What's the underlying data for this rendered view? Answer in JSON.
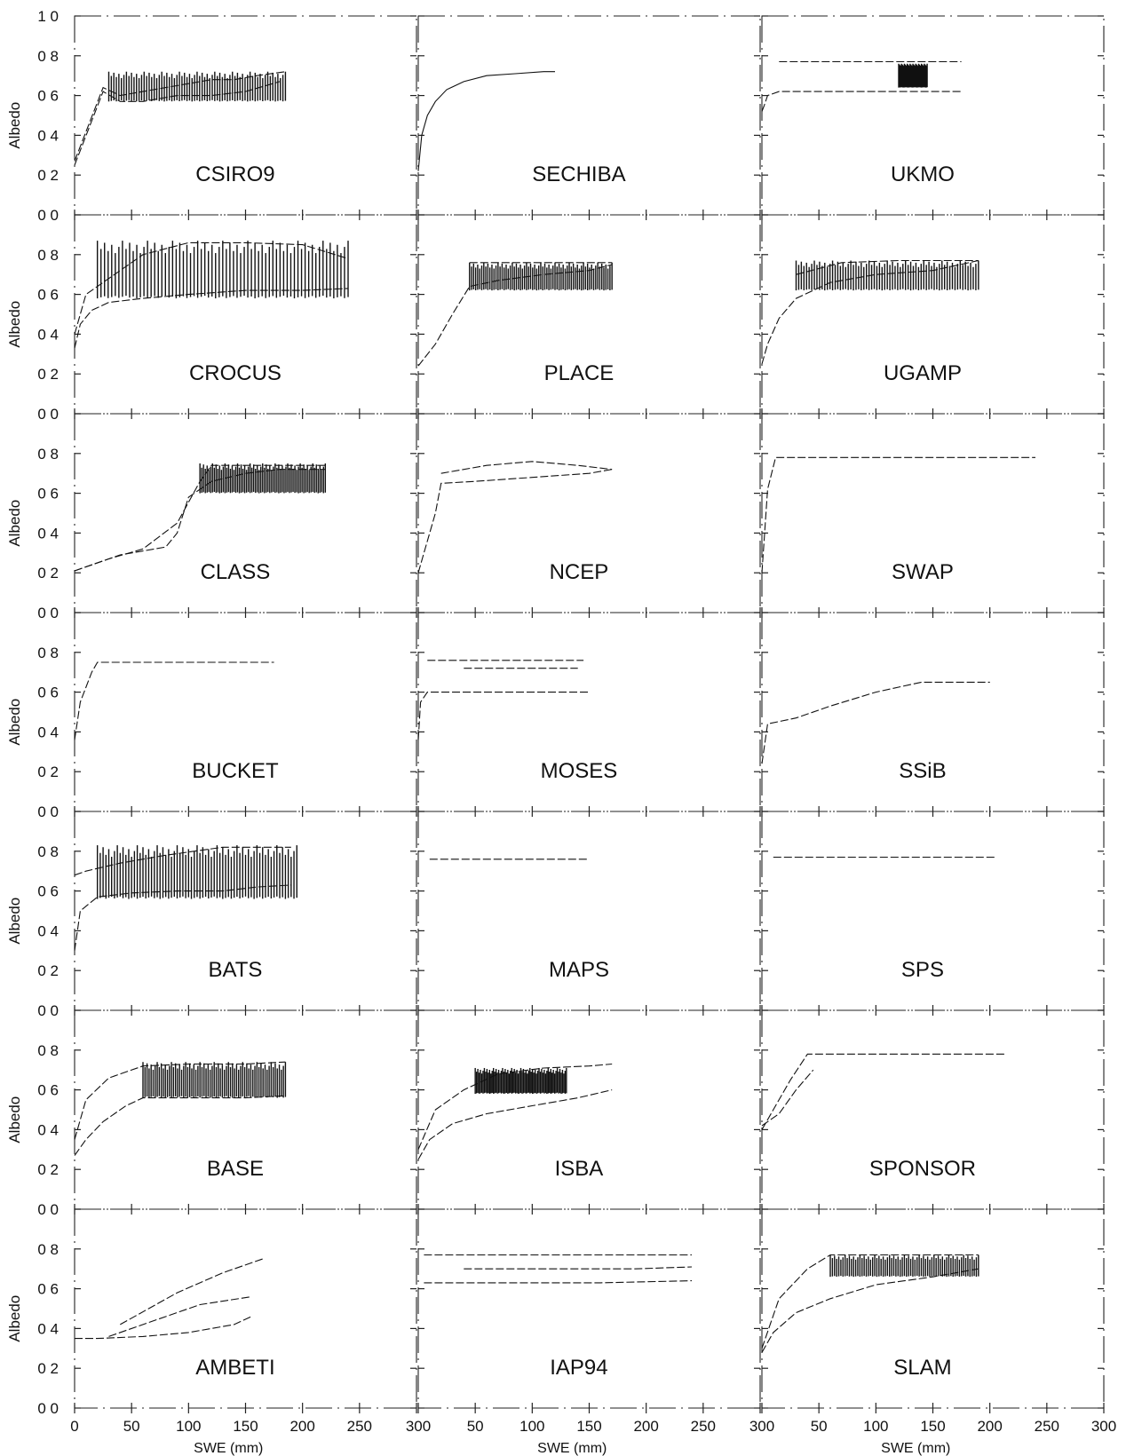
{
  "chart_data": {
    "type": "line",
    "xlabel": "SWE (mm)",
    "ylabel": "Albedo",
    "x_ticks": [
      0,
      50,
      100,
      150,
      200,
      250,
      300
    ],
    "x_tick_labels": [
      "0",
      "50",
      "100",
      "150",
      "200",
      "250",
      "300"
    ],
    "x_tick_labels_left_edge": [
      "0",
      "300",
      "300"
    ],
    "y_ticks": [
      0.0,
      0.2,
      0.4,
      0.6,
      0.8,
      1.0
    ],
    "y_tick_labels": [
      "0 0",
      "0 2",
      "0 4",
      "0 6",
      "0 8",
      "1 0"
    ],
    "xlim": [
      0,
      300
    ],
    "ylim": [
      0,
      1.0
    ],
    "grid": false,
    "layout": {
      "rows": 7,
      "cols": 3
    },
    "panels": [
      {
        "name": "CSIRO9",
        "series": [
          {
            "x": [
              0,
              25,
              40,
              60,
              80,
              100,
              120,
              140,
              160,
              185
            ],
            "y": [
              0.27,
              0.64,
              0.6,
              0.62,
              0.64,
              0.66,
              0.68,
              0.68,
              0.7,
              0.72
            ]
          },
          {
            "x": [
              0,
              25,
              40,
              60,
              90,
              120,
              150,
              180
            ],
            "y": [
              0.25,
              0.62,
              0.57,
              0.57,
              0.6,
              0.6,
              0.62,
              0.67
            ]
          }
        ],
        "band": {
          "x0": 30,
          "x1": 185,
          "ylo": 0.57,
          "yhi": 0.72
        }
      },
      {
        "name": "SECHIBA",
        "series": [
          {
            "x": [
              0,
              3,
              8,
              15,
              25,
              40,
              60,
              85,
              110,
              120
            ],
            "y": [
              0.22,
              0.4,
              0.5,
              0.57,
              0.63,
              0.67,
              0.7,
              0.71,
              0.72,
              0.72
            ],
            "solid": true
          }
        ]
      },
      {
        "name": "UKMO",
        "series": [
          {
            "x": [
              0,
              2,
              5,
              15,
              60,
              110,
              150,
              175
            ],
            "y": [
              0.52,
              0.55,
              0.6,
              0.62,
              0.62,
              0.62,
              0.62,
              0.62
            ]
          },
          {
            "x": [
              15,
              60,
              110,
              150,
              175
            ],
            "y": [
              0.77,
              0.77,
              0.77,
              0.77,
              0.77
            ]
          }
        ],
        "band": {
          "x0": 120,
          "x1": 145,
          "ylo": 0.64,
          "yhi": 0.76
        }
      },
      {
        "name": "CROCUS",
        "series": [
          {
            "x": [
              0,
              5,
              15,
              30,
              60,
              100,
              150,
              200,
              240
            ],
            "y": [
              0.33,
              0.45,
              0.52,
              0.56,
              0.58,
              0.6,
              0.62,
              0.62,
              0.63
            ]
          },
          {
            "x": [
              0,
              10,
              30,
              60,
              100,
              150,
              200,
              240
            ],
            "y": [
              0.4,
              0.6,
              0.68,
              0.8,
              0.86,
              0.86,
              0.85,
              0.78
            ]
          }
        ],
        "band": {
          "x0": 20,
          "x1": 240,
          "ylo": 0.58,
          "yhi": 0.87
        }
      },
      {
        "name": "PLACE",
        "series": [
          {
            "x": [
              0,
              15,
              30,
              45,
              70,
              110,
              150,
              170
            ],
            "y": [
              0.24,
              0.35,
              0.5,
              0.64,
              0.67,
              0.7,
              0.72,
              0.75
            ]
          },
          {
            "x": [
              45,
              80,
              120,
              170
            ],
            "y": [
              0.76,
              0.76,
              0.76,
              0.76
            ]
          }
        ],
        "band": {
          "x0": 45,
          "x1": 170,
          "ylo": 0.62,
          "yhi": 0.76
        }
      },
      {
        "name": "UGAMP",
        "series": [
          {
            "x": [
              0,
              5,
              15,
              30,
              60,
              100,
              150,
              190
            ],
            "y": [
              0.25,
              0.35,
              0.48,
              0.58,
              0.66,
              0.7,
              0.72,
              0.77
            ]
          },
          {
            "x": [
              30,
              70,
              120,
              190
            ],
            "y": [
              0.7,
              0.76,
              0.77,
              0.77
            ]
          }
        ],
        "band": {
          "x0": 30,
          "x1": 190,
          "ylo": 0.62,
          "yhi": 0.77
        }
      },
      {
        "name": "CLASS",
        "series": [
          {
            "x": [
              0,
              20,
              40,
              60,
              80,
              90,
              100,
              120,
              150,
              180,
              220
            ],
            "y": [
              0.21,
              0.25,
              0.29,
              0.31,
              0.33,
              0.4,
              0.58,
              0.66,
              0.7,
              0.72,
              0.72
            ]
          },
          {
            "x": [
              0,
              30,
              60,
              90,
              110,
              120,
              140,
              180,
              220
            ],
            "y": [
              0.21,
              0.27,
              0.32,
              0.45,
              0.66,
              0.74,
              0.74,
              0.74,
              0.74
            ]
          }
        ],
        "band": {
          "x0": 110,
          "x1": 220,
          "ylo": 0.6,
          "yhi": 0.75
        }
      },
      {
        "name": "NCEP",
        "series": [
          {
            "x": [
              0,
              5,
              15,
              20,
              50,
              100,
              150,
              170
            ],
            "y": [
              0.2,
              0.3,
              0.5,
              0.65,
              0.66,
              0.68,
              0.7,
              0.72
            ]
          },
          {
            "x": [
              20,
              60,
              100,
              140,
              170
            ],
            "y": [
              0.7,
              0.74,
              0.76,
              0.74,
              0.72
            ]
          }
        ]
      },
      {
        "name": "SWAP",
        "series": [
          {
            "x": [
              0,
              5,
              12,
              60,
              150,
              240
            ],
            "y": [
              0.2,
              0.62,
              0.78,
              0.78,
              0.78,
              0.78
            ]
          }
        ]
      },
      {
        "name": "BUCKET",
        "series": [
          {
            "x": [
              0,
              5,
              15,
              20,
              60,
              110,
              175
            ],
            "y": [
              0.36,
              0.55,
              0.7,
              0.75,
              0.75,
              0.75,
              0.75
            ]
          }
        ]
      },
      {
        "name": "MOSES",
        "series": [
          {
            "x": [
              0,
              2,
              8,
              60,
              120,
              150
            ],
            "y": [
              0.36,
              0.55,
              0.6,
              0.6,
              0.6,
              0.6
            ]
          },
          {
            "x": [
              8,
              60,
              120,
              145
            ],
            "y": [
              0.76,
              0.76,
              0.76,
              0.76
            ]
          },
          {
            "x": [
              40,
              90,
              140
            ],
            "y": [
              0.72,
              0.72,
              0.72
            ]
          }
        ]
      },
      {
        "name": "SSiB",
        "series": [
          {
            "x": [
              0,
              5,
              30,
              60,
              100,
              140,
              170,
              200
            ],
            "y": [
              0.24,
              0.44,
              0.47,
              0.53,
              0.6,
              0.65,
              0.65,
              0.65
            ]
          }
        ]
      },
      {
        "name": "BATS",
        "series": [
          {
            "x": [
              0,
              5,
              20,
              50,
              90,
              130,
              160,
              190
            ],
            "y": [
              0.3,
              0.5,
              0.57,
              0.59,
              0.6,
              0.6,
              0.62,
              0.63
            ]
          },
          {
            "x": [
              0,
              10,
              40,
              80,
              130,
              190
            ],
            "y": [
              0.68,
              0.7,
              0.74,
              0.78,
              0.82,
              0.82
            ]
          }
        ],
        "band": {
          "x0": 20,
          "x1": 195,
          "ylo": 0.56,
          "yhi": 0.83
        }
      },
      {
        "name": "MAPS",
        "series": [
          {
            "x": [
              10,
              60,
              120,
              150
            ],
            "y": [
              0.76,
              0.76,
              0.76,
              0.76
            ]
          }
        ]
      },
      {
        "name": "SPS",
        "series": [
          {
            "x": [
              10,
              80,
              150,
              205
            ],
            "y": [
              0.77,
              0.77,
              0.77,
              0.77
            ]
          }
        ]
      },
      {
        "name": "BASE",
        "series": [
          {
            "x": [
              0,
              10,
              25,
              45,
              60,
              100,
              150,
              185
            ],
            "y": [
              0.27,
              0.35,
              0.44,
              0.52,
              0.56,
              0.56,
              0.56,
              0.57
            ]
          },
          {
            "x": [
              0,
              10,
              30,
              60,
              100,
              150,
              185
            ],
            "y": [
              0.35,
              0.55,
              0.66,
              0.72,
              0.73,
              0.73,
              0.74
            ]
          }
        ],
        "band": {
          "x0": 60,
          "x1": 185,
          "ylo": 0.56,
          "yhi": 0.74
        }
      },
      {
        "name": "ISBA",
        "series": [
          {
            "x": [
              0,
              10,
              30,
              60,
              100,
              140,
              170
            ],
            "y": [
              0.25,
              0.35,
              0.43,
              0.48,
              0.52,
              0.56,
              0.6
            ]
          },
          {
            "x": [
              0,
              15,
              40,
              70,
              110,
              150,
              170
            ],
            "y": [
              0.3,
              0.5,
              0.6,
              0.68,
              0.71,
              0.72,
              0.73
            ]
          }
        ],
        "band": {
          "x0": 50,
          "x1": 130,
          "ylo": 0.58,
          "yhi": 0.71
        }
      },
      {
        "name": "SPONSOR",
        "series": [
          {
            "x": [
              0,
              10,
              25,
              40,
              80,
              150,
              215
            ],
            "y": [
              0.4,
              0.5,
              0.65,
              0.78,
              0.78,
              0.78,
              0.78
            ]
          },
          {
            "x": [
              0,
              15,
              30,
              45
            ],
            "y": [
              0.42,
              0.48,
              0.6,
              0.7
            ]
          }
        ]
      },
      {
        "name": "AMBETI",
        "series": [
          {
            "x": [
              0,
              20,
              60,
              100,
              140,
              155
            ],
            "y": [
              0.35,
              0.35,
              0.36,
              0.38,
              0.42,
              0.46
            ]
          },
          {
            "x": [
              30,
              70,
              110,
              155
            ],
            "y": [
              0.36,
              0.44,
              0.52,
              0.56
            ]
          },
          {
            "x": [
              40,
              90,
              130,
              165
            ],
            "y": [
              0.42,
              0.58,
              0.68,
              0.75
            ]
          }
        ]
      },
      {
        "name": "IAP94",
        "series": [
          {
            "x": [
              5,
              80,
              160,
              240
            ],
            "y": [
              0.63,
              0.63,
              0.63,
              0.64
            ]
          },
          {
            "x": [
              40,
              120,
              190,
              240
            ],
            "y": [
              0.7,
              0.7,
              0.7,
              0.71
            ]
          },
          {
            "x": [
              5,
              80,
              160,
              240
            ],
            "y": [
              0.77,
              0.77,
              0.77,
              0.77
            ]
          }
        ]
      },
      {
        "name": "SLAM",
        "series": [
          {
            "x": [
              0,
              10,
              30,
              60,
              100,
              150,
              190
            ],
            "y": [
              0.28,
              0.38,
              0.48,
              0.55,
              0.62,
              0.66,
              0.7
            ]
          },
          {
            "x": [
              0,
              15,
              40,
              60,
              100,
              150,
              190
            ],
            "y": [
              0.3,
              0.55,
              0.7,
              0.77,
              0.77,
              0.77,
              0.77
            ]
          }
        ],
        "band": {
          "x0": 60,
          "x1": 190,
          "ylo": 0.66,
          "yhi": 0.77
        }
      }
    ]
  }
}
